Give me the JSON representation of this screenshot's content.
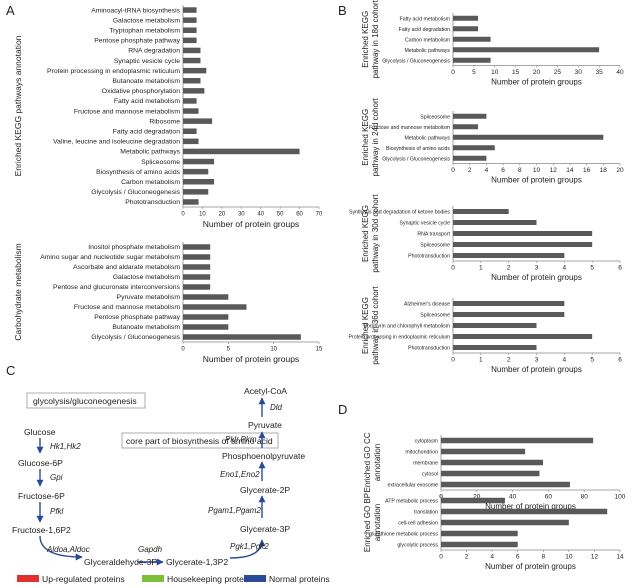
{
  "panels": {
    "A": "A",
    "B": "B",
    "C": "C",
    "D": "D"
  },
  "chart_data": [
    {
      "id": "A1",
      "type": "bar",
      "orientation": "horizontal",
      "ylabel": "Enriched KEGG pathways annotation",
      "xlabel": "Number of protein groups",
      "xlim": [
        0,
        70
      ],
      "xticks": [
        0,
        10,
        20,
        30,
        40,
        50,
        60,
        70
      ],
      "categories": [
        "Aminoacyl-tRNA biosynthesis",
        "Galactose metabolism",
        "Tryptophan metabolism",
        "Pentose phosphate pathway",
        "RNA degradation",
        "Synaptic vesicle cycle",
        "Protein processing in endoplasmic reticulum",
        "Butanoate metabolism",
        "Oxidative phosphorylation",
        "Fatty acid metabolism",
        "Fructose and mannose metabolism",
        "Ribosome",
        "Fatty acid degradation",
        "Valine, leucine and isoleucine degradation",
        "Metabolic pathways",
        "Spliceosome",
        "Biosynthesis of amino acids",
        "Carbon metabolism",
        "Glycolysis / Gluconeogenesis",
        "Phototransduction"
      ],
      "values": [
        7,
        7,
        7,
        7,
        9,
        9,
        12,
        9,
        11,
        7,
        8,
        15,
        7,
        8,
        60,
        16,
        13,
        16,
        13,
        8
      ]
    },
    {
      "id": "A2",
      "type": "bar",
      "orientation": "horizontal",
      "ylabel": "Carbohydrate metabolism",
      "xlabel": "Number of protein groups",
      "xlim": [
        0,
        15
      ],
      "xticks": [
        0,
        5,
        10,
        15
      ],
      "categories": [
        "Inositol phosphate metabolism",
        "Amino sugar and nucleotide sugar metabolism",
        "Ascorbate and aldarate metabolism",
        "Galactose metabolism",
        "Pentose and glucuronate interconversions",
        "Pyruvate metabolism",
        "Fructose and mannose metabolism",
        "Pentose phosphate pathway",
        "Butanoate metabolism",
        "Glycolysis / Gluconeogenesis"
      ],
      "values": [
        3,
        3,
        3,
        3,
        3,
        5,
        7,
        5,
        5,
        13
      ]
    },
    {
      "id": "B1",
      "type": "bar",
      "orientation": "horizontal",
      "ylabel": "Enriched KEGG pathway in 18d cohort",
      "xlabel": "Number of protein groups",
      "xlim": [
        0,
        40
      ],
      "xticks": [
        0,
        5,
        10,
        15,
        20,
        25,
        30,
        35,
        40
      ],
      "categories": [
        "Fatty acid metabolism",
        "Fatty acid degradation",
        "Carbon metabolism",
        "Metabolic pathways",
        "Glycolysis / Gluconeogenesis"
      ],
      "values": [
        6,
        6,
        9,
        35,
        9
      ]
    },
    {
      "id": "B2",
      "type": "bar",
      "orientation": "horizontal",
      "ylabel": "Enriched KEGG pathway in 24d cohort",
      "xlabel": "Number of protein groups",
      "xlim": [
        0,
        20
      ],
      "xticks": [
        0,
        2,
        4,
        6,
        8,
        10,
        12,
        14,
        16,
        18,
        20
      ],
      "categories": [
        "Spliceosome",
        "Fructose and mannose metabolism",
        "Metabolic pathways",
        "Biosynthesis of amino acids",
        "Glycolysis / Gluconeogenesis"
      ],
      "values": [
        4,
        3,
        18,
        5,
        4
      ]
    },
    {
      "id": "B3",
      "type": "bar",
      "orientation": "horizontal",
      "ylabel": "Enriched KEGG pathway in 30d cohort",
      "xlabel": "Number of protein groups",
      "xlim": [
        0,
        6
      ],
      "xticks": [
        0,
        1,
        2,
        3,
        4,
        5,
        6
      ],
      "categories": [
        "Synthesis and degradation of ketone bodies",
        "Synaptic vesicle cycle",
        "RNA transport",
        "Spliceosome",
        "Phototransduction"
      ],
      "values": [
        2,
        3,
        5,
        5,
        4
      ]
    },
    {
      "id": "B4",
      "type": "bar",
      "orientation": "horizontal",
      "ylabel": "Enriched KEGG pathway in 36d cohort",
      "xlabel": "Number of protein groups",
      "xlim": [
        0,
        6
      ],
      "xticks": [
        0,
        1,
        2,
        3,
        4,
        5,
        6
      ],
      "categories": [
        "Alzheimer's disease",
        "Spliceosome",
        "Porphyrin and chlorophyll metabolism",
        "Protein processing in endoplasmic reticulum",
        "Phototransduction"
      ],
      "values": [
        4,
        4,
        3,
        5,
        3
      ]
    },
    {
      "id": "D1",
      "type": "bar",
      "orientation": "horizontal",
      "ylabel": "Enriched GO CC annotation",
      "xlabel": "Number of protein groups",
      "xlim": [
        0,
        100
      ],
      "xticks": [
        0,
        20,
        40,
        60,
        80,
        100
      ],
      "categories": [
        "cytoplasm",
        "mitochondrion",
        "membrane",
        "cytosol",
        "extracellular exosome"
      ],
      "values": [
        85,
        47,
        57,
        55,
        72
      ]
    },
    {
      "id": "D2",
      "type": "bar",
      "orientation": "horizontal",
      "ylabel": "Enriched GO BP annotation",
      "xlabel": "Number of protein groups",
      "xlim": [
        0,
        14
      ],
      "xticks": [
        0,
        2,
        4,
        6,
        8,
        10,
        12,
        14
      ],
      "categories": [
        "ATP metabolic process",
        "translation",
        "cell-cell adhesion",
        "glutathione metabolic process",
        "glycolytic process"
      ],
      "values": [
        5,
        13,
        10,
        6,
        6
      ]
    }
  ],
  "pathway": {
    "title": "glycolysis/gluconeogenesis",
    "subtitle": "core part of biosynthesis of amino acid",
    "metabolites": {
      "glucose": "Glucose",
      "g6p": "Glucose-6P",
      "f6p": "Fructose-6P",
      "f16p2": "Fructose-1,6P2",
      "g3p": "Glyceraldehyde-3P",
      "g13p2": "Glycerate-1,3P2",
      "g3p2": "Glycerate-3P",
      "g2p": "Glycerate-2P",
      "pep": "Phosphoenolpyruvate",
      "pyr": "Pyruvate",
      "acoa": "Acetyl-CoA"
    },
    "genes": {
      "hk": "Hk1,Hk2",
      "gpi": "Gpi",
      "pfkl": "Pfkl",
      "aldo": "Aldoa,Aldoc",
      "gapdh": "Gapdh",
      "pgk": "Pgk1,Pgk2",
      "pgam": "Pgam1,Pgam2",
      "eno": "Eno1,Eno2",
      "pk": "Pklr,Pkm",
      "dld": "Dld"
    },
    "legend": {
      "up": "Up-regulated proteins",
      "house": "Housekeeping proteins",
      "normal": "Normal proteins"
    }
  },
  "colors": {
    "bar": "#595959",
    "up": "#e03030",
    "house": "#7dbf3a",
    "normal": "#2a4a9a",
    "arrow": "#2a4a9a"
  }
}
